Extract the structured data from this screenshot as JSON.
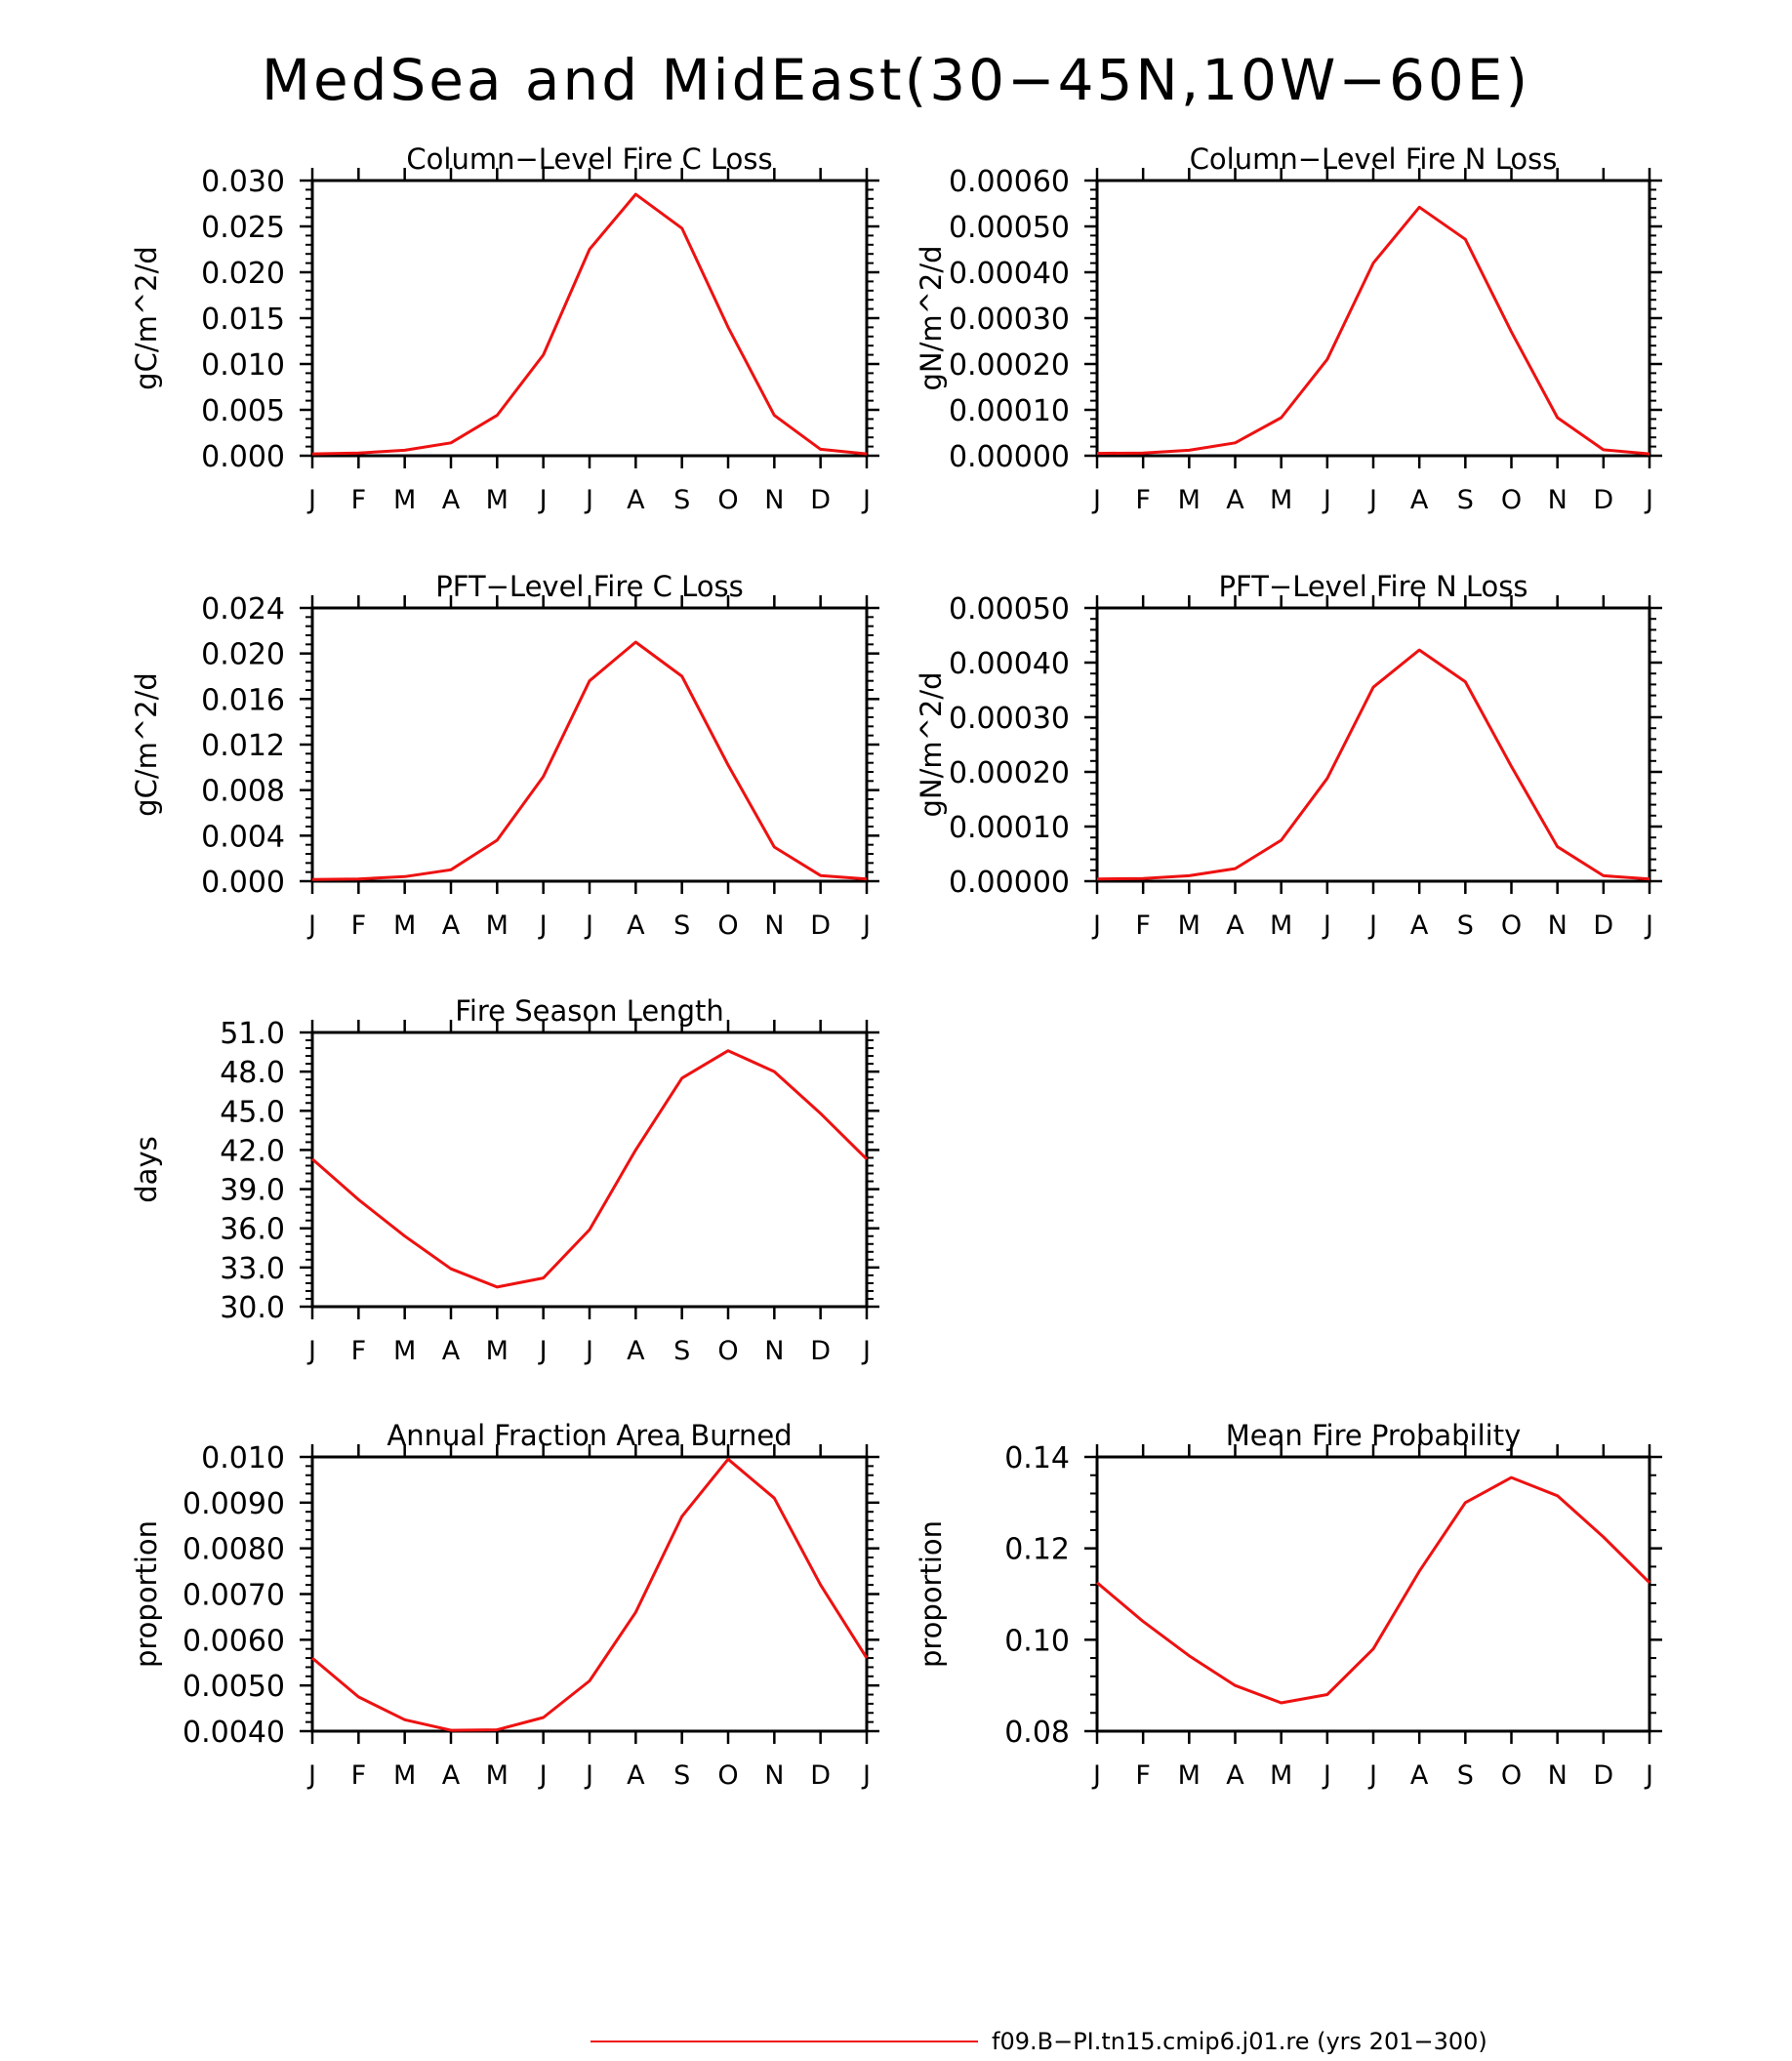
{
  "title": "MedSea and MidEast(30−45N,10W−60E)",
  "colors": {
    "series": "#ee1111",
    "axis": "#000000"
  },
  "legend": {
    "label": "f09.B−PI.tn15.cmip6.j01.re (yrs 201−300)",
    "placement": "bottom-center"
  },
  "chart_data": [
    {
      "type": "line",
      "title": "Column−Level Fire C Loss",
      "ylabel": "gC/m^2/d",
      "categories": [
        "J",
        "F",
        "M",
        "A",
        "M",
        "J",
        "J",
        "A",
        "S",
        "O",
        "N",
        "D",
        "J"
      ],
      "ylim": [
        0,
        0.03
      ],
      "yticks": [
        "0.000",
        "0.005",
        "0.010",
        "0.015",
        "0.020",
        "0.025",
        "0.030"
      ],
      "series": [
        {
          "values": [
            0.0002,
            0.0003,
            0.0006,
            0.0014,
            0.0044,
            0.011,
            0.0225,
            0.0285,
            0.0248,
            0.014,
            0.0044,
            0.0007,
            0.0002
          ]
        }
      ]
    },
    {
      "type": "line",
      "title": "Column−Level Fire N Loss",
      "ylabel": "gN/m^2/d",
      "categories": [
        "J",
        "F",
        "M",
        "A",
        "M",
        "J",
        "J",
        "A",
        "S",
        "O",
        "N",
        "D",
        "J"
      ],
      "ylim": [
        0,
        0.0006
      ],
      "yticks": [
        "0.00000",
        "0.00010",
        "0.00020",
        "0.00030",
        "0.00040",
        "0.00050",
        "0.00060"
      ],
      "series": [
        {
          "values": [
            5e-06,
            6e-06,
            1.2e-05,
            2.8e-05,
            8.3e-05,
            0.00021,
            0.00042,
            0.000542,
            0.000472,
            0.00027,
            8.3e-05,
            1.3e-05,
            4e-06
          ]
        }
      ]
    },
    {
      "type": "line",
      "title": "PFT−Level Fire C Loss",
      "ylabel": "gC/m^2/d",
      "categories": [
        "J",
        "F",
        "M",
        "A",
        "M",
        "J",
        "J",
        "A",
        "S",
        "O",
        "N",
        "D",
        "J"
      ],
      "ylim": [
        0,
        0.024
      ],
      "yticks": [
        "0.000",
        "0.004",
        "0.008",
        "0.012",
        "0.016",
        "0.020",
        "0.024"
      ],
      "series": [
        {
          "values": [
            0.00015,
            0.0002,
            0.0004,
            0.001,
            0.0036,
            0.0092,
            0.0176,
            0.021,
            0.018,
            0.0102,
            0.003,
            0.0005,
            0.0002
          ]
        }
      ]
    },
    {
      "type": "line",
      "title": "PFT−Level Fire N Loss",
      "ylabel": "gN/m^2/d",
      "categories": [
        "J",
        "F",
        "M",
        "A",
        "M",
        "J",
        "J",
        "A",
        "S",
        "O",
        "N",
        "D",
        "J"
      ],
      "ylim": [
        0,
        0.0005
      ],
      "yticks": [
        "0.00000",
        "0.00010",
        "0.00020",
        "0.00030",
        "0.00040",
        "0.00050"
      ],
      "series": [
        {
          "values": [
            4e-06,
            5e-06,
            1e-05,
            2.3e-05,
            7.5e-05,
            0.000188,
            0.000355,
            0.000423,
            0.000365,
            0.00021,
            6.3e-05,
            1e-05,
            4e-06
          ]
        }
      ]
    },
    {
      "type": "line",
      "title": "Fire Season Length",
      "ylabel": "days",
      "categories": [
        "J",
        "F",
        "M",
        "A",
        "M",
        "J",
        "J",
        "A",
        "S",
        "O",
        "N",
        "D",
        "J"
      ],
      "ylim": [
        30,
        51
      ],
      "yticks": [
        "30.0",
        "33.0",
        "36.0",
        "39.0",
        "42.0",
        "45.0",
        "48.0",
        "51.0"
      ],
      "series": [
        {
          "values": [
            41.3,
            38.2,
            35.4,
            32.9,
            31.5,
            32.2,
            35.9,
            42,
            47.5,
            49.6,
            48,
            44.8,
            41.3
          ]
        }
      ]
    },
    {
      "type": "line",
      "title": "Annual Fraction Area Burned",
      "ylabel": "proportion",
      "categories": [
        "J",
        "F",
        "M",
        "A",
        "M",
        "J",
        "J",
        "A",
        "S",
        "O",
        "N",
        "D",
        "J"
      ],
      "ylim": [
        0.004,
        0.01
      ],
      "yticks": [
        "0.0040",
        "0.0050",
        "0.0060",
        "0.0070",
        "0.0080",
        "0.0090",
        "0.010"
      ],
      "series": [
        {
          "values": [
            0.0056,
            0.00475,
            0.00425,
            0.00402,
            0.00403,
            0.0043,
            0.0051,
            0.0066,
            0.0087,
            0.00995,
            0.0091,
            0.0072,
            0.0056
          ]
        }
      ]
    },
    {
      "type": "line",
      "title": "Mean Fire Probability",
      "ylabel": "proportion",
      "categories": [
        "J",
        "F",
        "M",
        "A",
        "M",
        "J",
        "J",
        "A",
        "S",
        "O",
        "N",
        "D",
        "J"
      ],
      "ylim": [
        0.08,
        0.14
      ],
      "yticks": [
        "0.08",
        "0.10",
        "0.12",
        "0.14"
      ],
      "series": [
        {
          "values": [
            0.1125,
            0.104,
            0.0965,
            0.09,
            0.0862,
            0.088,
            0.098,
            0.115,
            0.13,
            0.1355,
            0.1315,
            0.1225,
            0.1125
          ]
        }
      ]
    }
  ]
}
